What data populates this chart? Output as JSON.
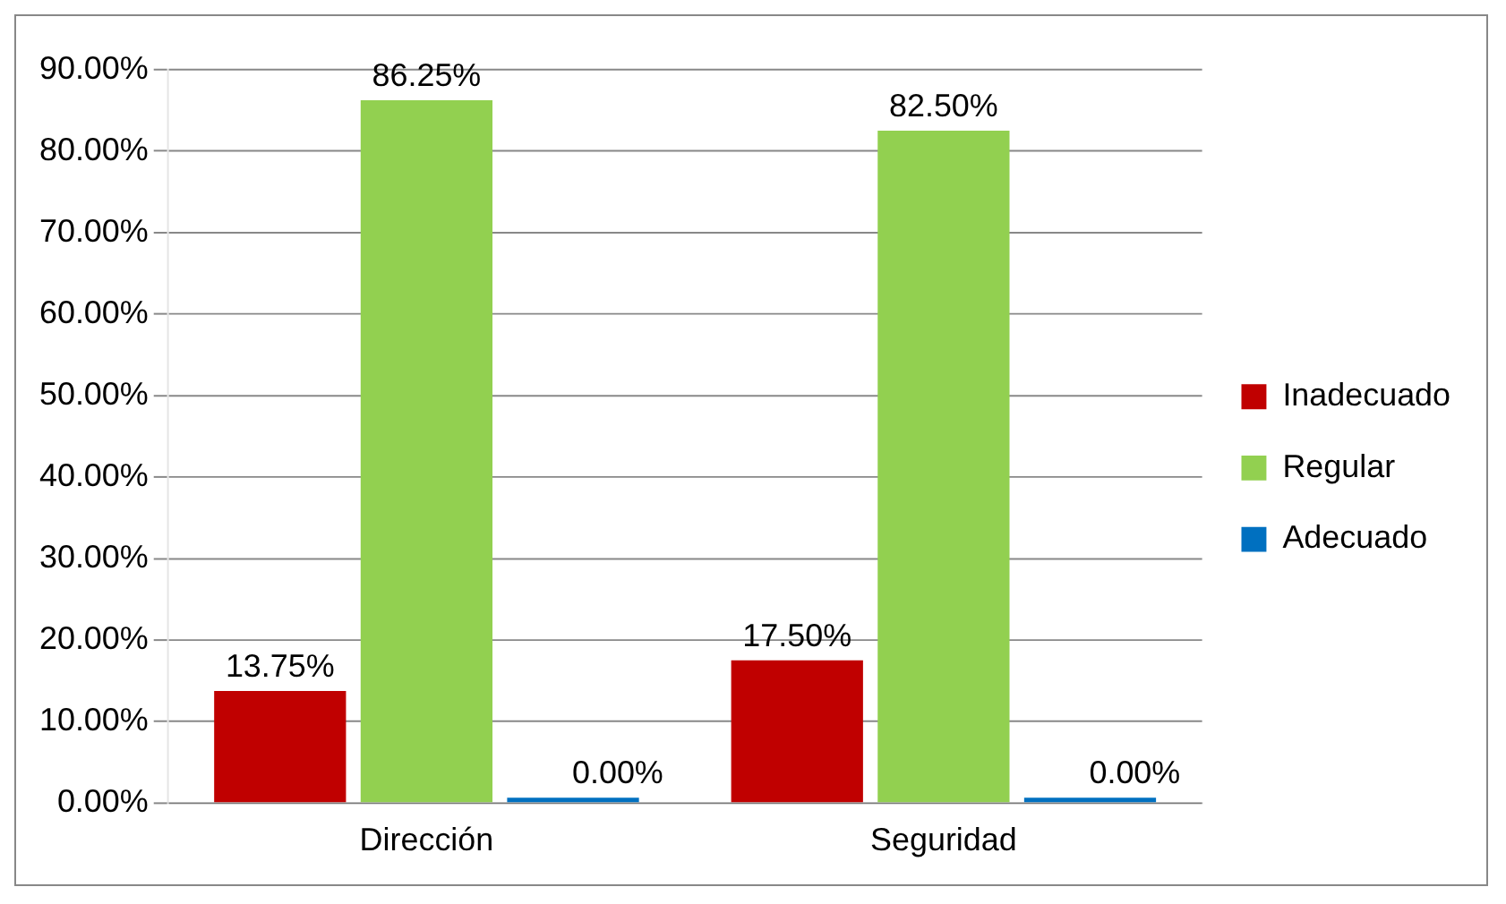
{
  "chart_data": {
    "type": "bar",
    "categories": [
      "Dirección",
      "Seguridad"
    ],
    "series": [
      {
        "name": "Inadecuado",
        "color": "#c00000",
        "values": [
          13.75,
          17.5
        ],
        "value_labels": [
          "13.75%",
          "17.50%"
        ]
      },
      {
        "name": "Regular",
        "color": "#92d050",
        "values": [
          86.25,
          82.5
        ],
        "value_labels": [
          "86.25%",
          "82.50%"
        ]
      },
      {
        "name": "Adecuado",
        "color": "#0070c0",
        "values": [
          0,
          0
        ],
        "value_labels": [
          "0.00%",
          "0.00%"
        ]
      }
    ],
    "ylim": [
      0,
      90
    ],
    "yticks": [
      {
        "value": 0,
        "label": "0.00%"
      },
      {
        "value": 10,
        "label": "10.00%"
      },
      {
        "value": 20,
        "label": "20.00%"
      },
      {
        "value": 30,
        "label": "30.00%"
      },
      {
        "value": 40,
        "label": "40.00%"
      },
      {
        "value": 50,
        "label": "50.00%"
      },
      {
        "value": 60,
        "label": "60.00%"
      },
      {
        "value": 70,
        "label": "70.00%"
      },
      {
        "value": 80,
        "label": "80.00%"
      },
      {
        "value": 90,
        "label": "90.00%"
      }
    ],
    "grid": "y",
    "legend": "right"
  }
}
